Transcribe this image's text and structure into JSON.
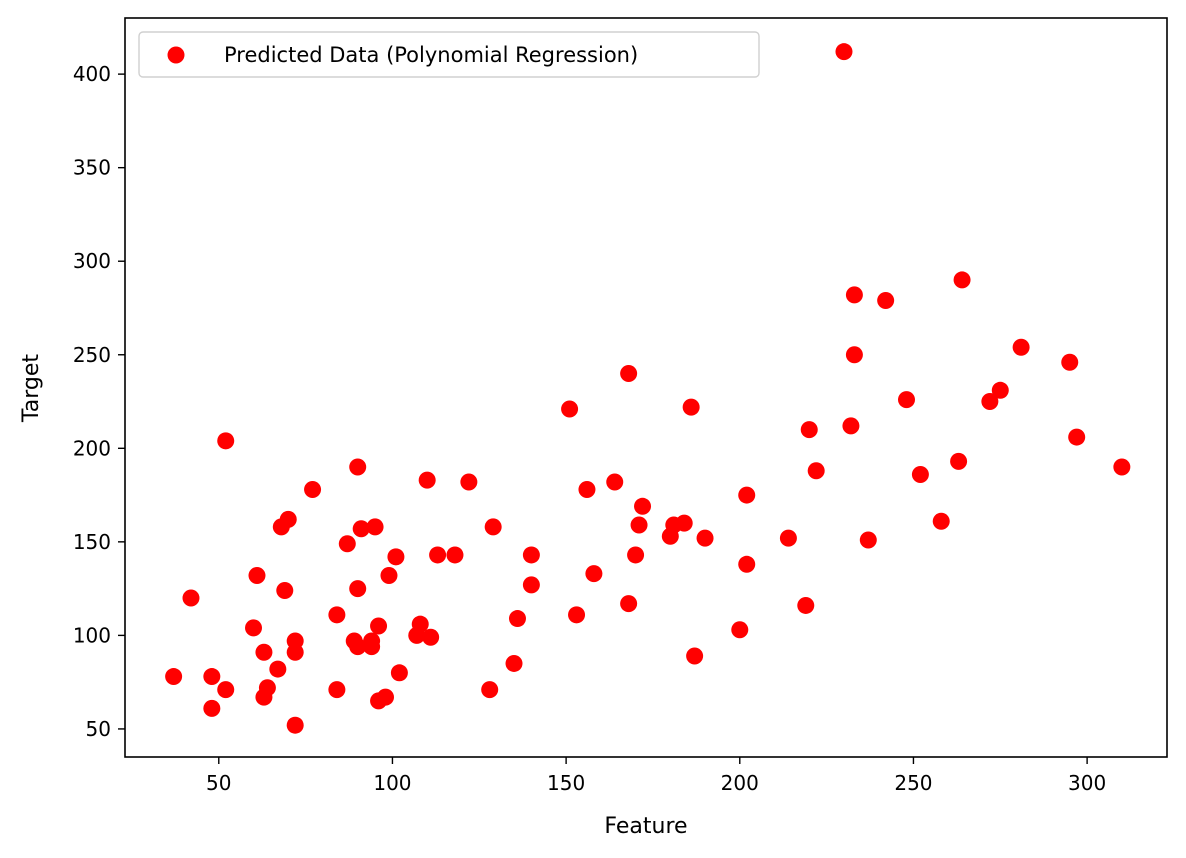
{
  "chart_data": {
    "type": "scatter",
    "title": "",
    "xlabel": "Feature",
    "ylabel": "Target",
    "xlim": [
      23,
      323
    ],
    "ylim": [
      35,
      430
    ],
    "xticks": [
      50,
      100,
      150,
      200,
      250,
      300
    ],
    "yticks": [
      50,
      100,
      150,
      200,
      250,
      300,
      350,
      400
    ],
    "grid": false,
    "legend": {
      "placement": "upper-left",
      "entries": [
        "Predicted Data (Polynomial Regression)"
      ]
    },
    "series": [
      {
        "name": "Predicted Data (Polynomial Regression)",
        "color": "#ff0000",
        "points": [
          [
            37,
            78
          ],
          [
            42,
            120
          ],
          [
            48,
            61
          ],
          [
            48,
            78
          ],
          [
            52,
            71
          ],
          [
            52,
            204
          ],
          [
            60,
            104
          ],
          [
            61,
            132
          ],
          [
            63,
            91
          ],
          [
            63,
            67
          ],
          [
            64,
            72
          ],
          [
            67,
            82
          ],
          [
            68,
            158
          ],
          [
            69,
            124
          ],
          [
            70,
            162
          ],
          [
            72,
            52
          ],
          [
            72,
            97
          ],
          [
            72,
            91
          ],
          [
            77,
            178
          ],
          [
            84,
            111
          ],
          [
            84,
            71
          ],
          [
            87,
            149
          ],
          [
            89,
            97
          ],
          [
            90,
            94
          ],
          [
            90,
            125
          ],
          [
            90,
            190
          ],
          [
            91,
            157
          ],
          [
            94,
            97
          ],
          [
            94,
            94
          ],
          [
            95,
            158
          ],
          [
            96,
            105
          ],
          [
            96,
            65
          ],
          [
            98,
            67
          ],
          [
            99,
            132
          ],
          [
            101,
            142
          ],
          [
            102,
            80
          ],
          [
            107,
            100
          ],
          [
            108,
            106
          ],
          [
            110,
            183
          ],
          [
            111,
            99
          ],
          [
            113,
            143
          ],
          [
            118,
            143
          ],
          [
            122,
            182
          ],
          [
            128,
            71
          ],
          [
            129,
            158
          ],
          [
            135,
            85
          ],
          [
            136,
            109
          ],
          [
            140,
            143
          ],
          [
            140,
            127
          ],
          [
            151,
            221
          ],
          [
            153,
            111
          ],
          [
            156,
            178
          ],
          [
            158,
            133
          ],
          [
            164,
            182
          ],
          [
            168,
            240
          ],
          [
            168,
            117
          ],
          [
            170,
            143
          ],
          [
            171,
            159
          ],
          [
            172,
            169
          ],
          [
            180,
            153
          ],
          [
            181,
            159
          ],
          [
            184,
            160
          ],
          [
            186,
            222
          ],
          [
            187,
            89
          ],
          [
            190,
            152
          ],
          [
            200,
            103
          ],
          [
            202,
            175
          ],
          [
            202,
            138
          ],
          [
            214,
            152
          ],
          [
            219,
            116
          ],
          [
            220,
            210
          ],
          [
            222,
            188
          ],
          [
            230,
            412
          ],
          [
            232,
            212
          ],
          [
            233,
            282
          ],
          [
            233,
            250
          ],
          [
            237,
            151
          ],
          [
            242,
            279
          ],
          [
            248,
            226
          ],
          [
            252,
            186
          ],
          [
            258,
            161
          ],
          [
            263,
            193
          ],
          [
            264,
            290
          ],
          [
            272,
            225
          ],
          [
            275,
            231
          ],
          [
            281,
            254
          ],
          [
            295,
            246
          ],
          [
            297,
            206
          ],
          [
            310,
            190
          ]
        ]
      }
    ]
  }
}
